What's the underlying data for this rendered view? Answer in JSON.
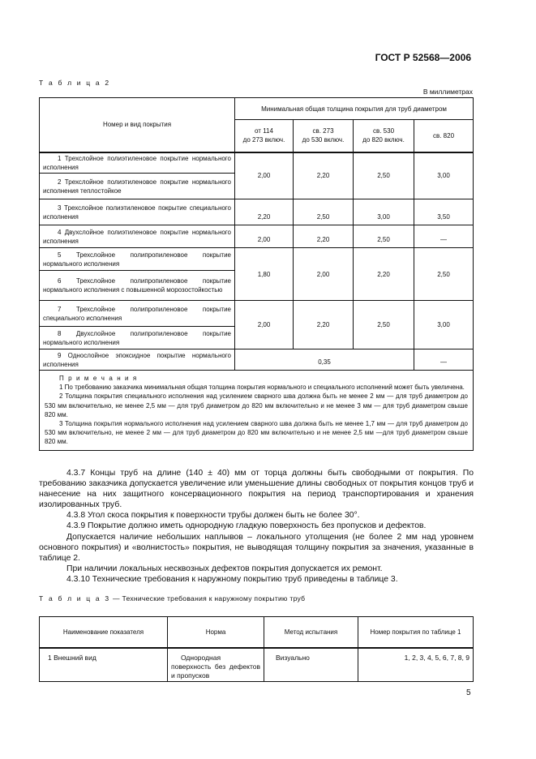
{
  "header": {
    "doc_id": "ГОСТ Р 52568—2006"
  },
  "table2": {
    "caption": "Т а б л и ц а  2",
    "unit": "В миллиметрах",
    "col_header": "Номер и вид покрытия",
    "group_header": "Минимальная общая толщина покрытия для труб диаметром",
    "diameters": [
      "от 114\nдо 273 включ.",
      "св. 273\nдо 530 включ.",
      "св. 530\nдо 820 включ.",
      "св. 820"
    ],
    "rows": [
      {
        "name": "1 Трехслойное полиэтиленовое покрытие нормального исполнения"
      },
      {
        "name": "2 Трехслойное полиэтиленовое покрытие нормального исполнения теплостойкое"
      },
      {
        "name": "3 Трехслойное полиэтиленовое покрытие специального исполнения"
      },
      {
        "name": "4 Двухслойное полиэтиленовое покрытие нормального исполнения"
      },
      {
        "name": "5 Трехслойное полипропиленовое покрытие нормального исполнения"
      },
      {
        "name": "6 Трехслойное полипропиленовое покрытие нормального исполнения с повышенной морозостойкостью"
      },
      {
        "name": "7 Трехслойное полипропиленовое покрытие специального исполнения"
      },
      {
        "name": "8 Двухслойное полипропиленовое покрытие нормального исполнения"
      },
      {
        "name": "9 Однослойное эпоксидное покрытие нормального исполнения"
      }
    ],
    "values": {
      "r1_2": [
        "2,00",
        "2,20",
        "2,50",
        "3,00"
      ],
      "r3": [
        "2,20",
        "2,50",
        "3,00",
        "3,50"
      ],
      "r4": [
        "2,00",
        "2,20",
        "2,50",
        "—"
      ],
      "r5_6": [
        "1,80",
        "2,00",
        "2,20",
        "2,50"
      ],
      "r7_8": [
        "2,00",
        "2,20",
        "2,50",
        "3,00"
      ],
      "r9": [
        "0,35",
        "—"
      ]
    },
    "notes_title": "П р и м е ч а н и я",
    "notes": [
      "1 По требованию заказчика минимальная общая толщина покрытия нормального и специального исполнений может быть увеличена.",
      "2 Толщина покрытия специального исполнения над усилением сварного шва должна быть не менее 2 мм — для труб диаметром до 530 мм включительно, не менее 2,5 мм — для труб диаметром до 820 мм включительно и не менее 3 мм — для труб диаметром свыше 820 мм.",
      "3 Толщина покрытия нормального исполнения над усилением сварного шва должна быть не менее 1,7 мм — для труб диаметром до 530 мм включительно, не менее 2 мм — для труб диаметром до 820 мм включительно и не менее 2,5 мм —для труб диаметром свыше 820 мм."
    ]
  },
  "paragraphs": [
    "4.3.7 Концы труб на длине (140 ± 40) мм от торца должны быть свободными от покрытия. По требованию заказчика допускается увеличение или уменьшение длины свободных от покрытия концов труб и нанесение на них защитного консервационного покрытия на период транспортирования и хранения изолированных труб.",
    "4.3.8 Угол скоса покрытия к поверхности трубы должен быть не более 30°.",
    "4.3.9 Покрытие должно иметь однородную гладкую поверхность без пропусков и дефектов.",
    "Допускается наличие небольших наплывов – локального утолщения (не более 2 мм над уровнем основного покрытия) и «волнистость» покрытия, не выводящая толщину покрытия за значения, указанные в таблице 2.",
    "При наличии локальных несквозных дефектов покрытия допускается их ремонт.",
    "4.3.10 Технические требования к наружному покрытию труб приведены в таблице 3."
  ],
  "table3": {
    "caption_label": "Т а б л и ц а  3",
    "caption_text": " — Технические требования к наружному покрытию труб",
    "headers": [
      "Наименование показателя",
      "Норма",
      "Метод испытания",
      "Номер покрытия по таблице 1"
    ],
    "rows": [
      [
        "1 Внешний вид",
        "Однородная поверхность без дефектов и пропусков",
        "Визуально",
        "1, 2, 3, 4, 5, 6, 7, 8, 9"
      ]
    ]
  },
  "page_number": "5"
}
